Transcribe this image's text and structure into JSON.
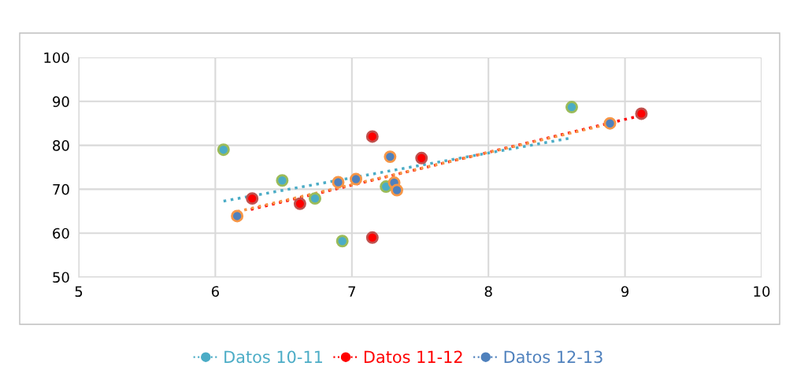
{
  "chart_data": {
    "type": "scatter",
    "xlim": [
      5,
      10
    ],
    "ylim": [
      50,
      100
    ],
    "xticks": [
      5,
      6,
      7,
      8,
      9,
      10
    ],
    "yticks": [
      50,
      60,
      70,
      80,
      90,
      100
    ],
    "grid": true,
    "legend": "bottom",
    "marker": "circle",
    "series": [
      {
        "name": "Datos 10-11",
        "color": "#4bacc6",
        "x": [
          6.06,
          6.49,
          6.73,
          6.93,
          7.25,
          8.61
        ],
        "values": [
          79.0,
          72.0,
          67.9,
          58.2,
          70.6,
          88.7
        ]
      },
      {
        "name": "Datos 11-12",
        "color": "#ff0000",
        "x": [
          6.27,
          6.62,
          7.15,
          7.15,
          7.51,
          9.12
        ],
        "values": [
          67.9,
          66.7,
          82.0,
          59.0,
          77.1,
          87.2
        ]
      },
      {
        "name": "Datos 12-13",
        "color": "#4f81bd",
        "x": [
          6.16,
          6.9,
          7.03,
          7.28,
          7.31,
          7.33,
          8.89
        ],
        "values": [
          63.9,
          71.6,
          72.3,
          77.4,
          71.5,
          69.8,
          85.0
        ]
      },
      {
        "type": "line",
        "color": "#4bacc6",
        "line_style": "dotted",
        "marker": "none",
        "x": [
          6.06,
          8.61
        ],
        "values": [
          67.3,
          81.7
        ]
      },
      {
        "type": "line",
        "color": "#ff0000",
        "line_style": "dotted",
        "marker": "none",
        "x": [
          6.26,
          9.12
        ],
        "values": [
          65.4,
          86.8
        ]
      },
      {
        "type": "line",
        "color": "#f79646",
        "line_style": "dotted",
        "marker": "none",
        "x": [
          6.16,
          8.89
        ],
        "values": [
          64.9,
          84.9
        ]
      }
    ]
  }
}
